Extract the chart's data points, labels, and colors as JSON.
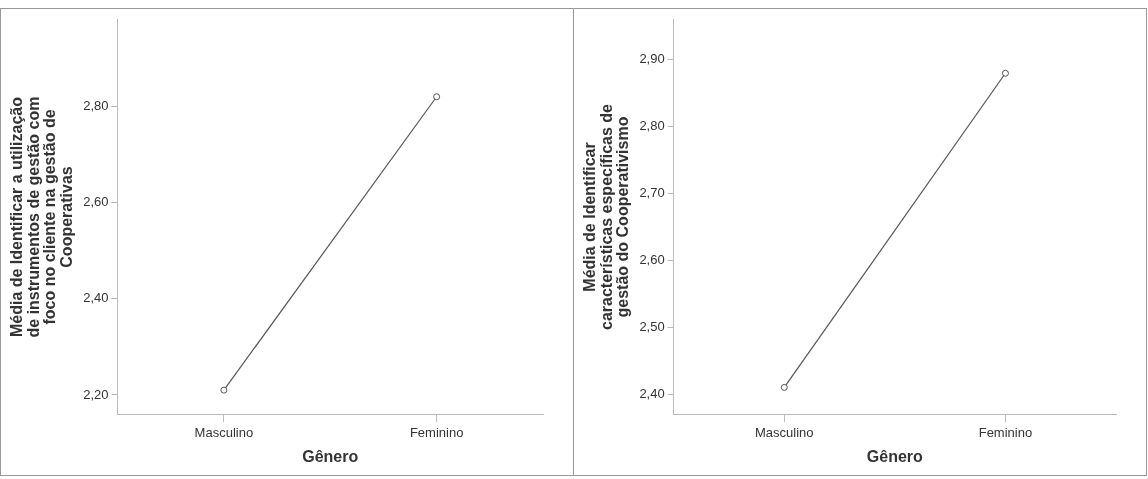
{
  "chart_data": [
    {
      "type": "line",
      "xlabel": "Gênero",
      "ylabel": "Média de Identificar a utilização\nde instrumentos de gestão com\nfoco no cliente na gestão de\nCooperativas",
      "categories": [
        "Masculino",
        "Feminino"
      ],
      "series": [
        {
          "color": "#555555",
          "values": [
            2.21,
            2.82
          ]
        }
      ],
      "ylim": [
        2.16,
        2.98
      ],
      "yticks": [
        {
          "value": 2.2,
          "label": "2,20"
        },
        {
          "value": 2.4,
          "label": "2,40"
        },
        {
          "value": 2.6,
          "label": "2,60"
        },
        {
          "value": 2.8,
          "label": "2,80"
        }
      ],
      "grid": false,
      "legend": false,
      "marker": "circle",
      "line_style": "solid"
    },
    {
      "type": "line",
      "xlabel": "Gênero",
      "ylabel": "Média de Identificar\ncaracterísticas específicas de\ngestão do Cooperativismo",
      "categories": [
        "Masculino",
        "Feminino"
      ],
      "series": [
        {
          "color": "#555555",
          "values": [
            2.41,
            2.88
          ]
        }
      ],
      "ylim": [
        2.37,
        2.96
      ],
      "yticks": [
        {
          "value": 2.4,
          "label": "2,40"
        },
        {
          "value": 2.5,
          "label": "2,50"
        },
        {
          "value": 2.6,
          "label": "2,60"
        },
        {
          "value": 2.7,
          "label": "2,70"
        },
        {
          "value": 2.8,
          "label": "2,80"
        },
        {
          "value": 2.9,
          "label": "2,90"
        }
      ],
      "grid": false,
      "legend": false,
      "marker": "circle",
      "line_style": "solid"
    }
  ]
}
